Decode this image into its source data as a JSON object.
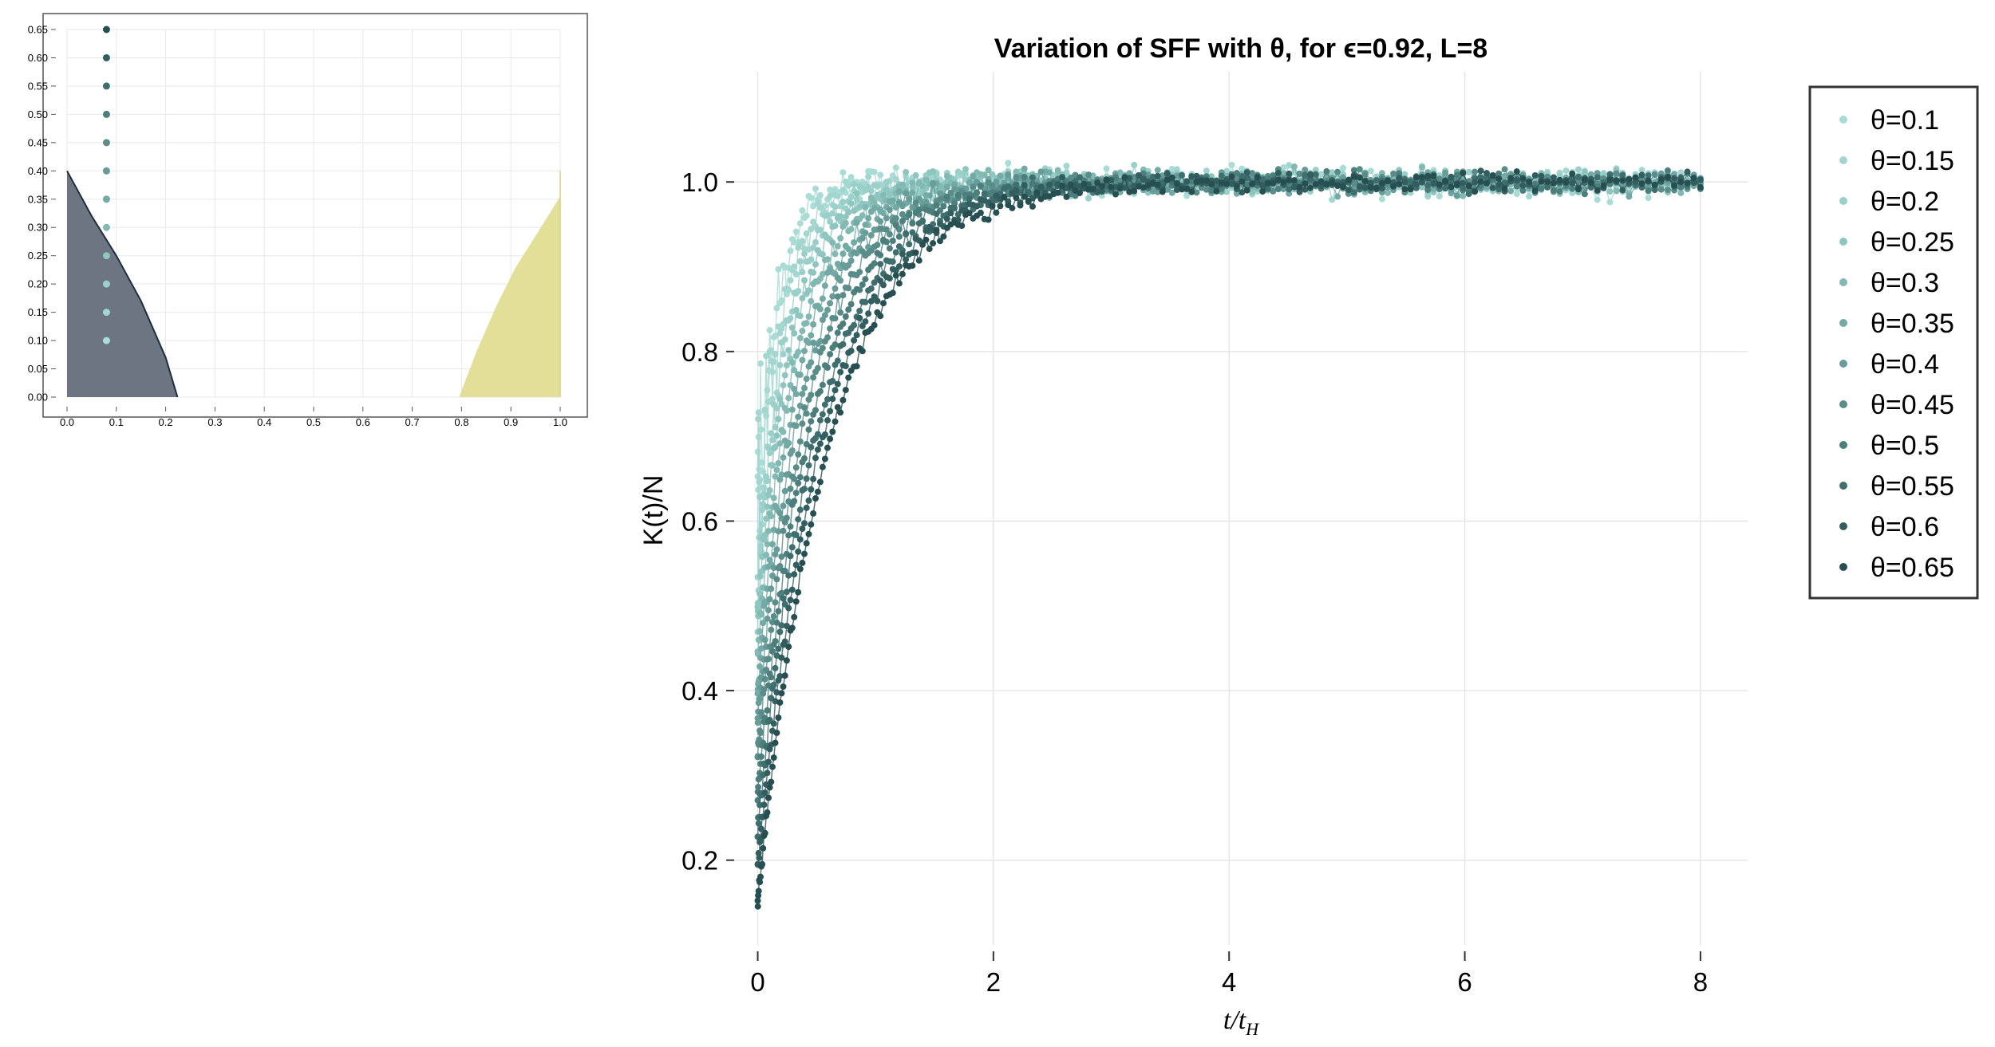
{
  "chart_data": [
    {
      "id": "inset",
      "type": "scatter",
      "title": "",
      "xlabel": "",
      "ylabel": "",
      "xlim": [
        0.0,
        1.0
      ],
      "ylim": [
        0.0,
        0.65
      ],
      "grid": true,
      "x_ticks": [
        "0.0",
        "0.1",
        "0.2",
        "0.3",
        "0.4",
        "0.5",
        "0.6",
        "0.7",
        "0.8",
        "0.9",
        "1.0"
      ],
      "y_ticks": [
        "0.00",
        "0.05",
        "0.10",
        "0.15",
        "0.20",
        "0.25",
        "0.30",
        "0.35",
        "0.40",
        "0.45",
        "0.50",
        "0.55",
        "0.60",
        "0.65"
      ],
      "points": [
        {
          "x": 0.08,
          "y": 0.1
        },
        {
          "x": 0.08,
          "y": 0.15
        },
        {
          "x": 0.08,
          "y": 0.2
        },
        {
          "x": 0.08,
          "y": 0.25
        },
        {
          "x": 0.08,
          "y": 0.3
        },
        {
          "x": 0.08,
          "y": 0.35
        },
        {
          "x": 0.08,
          "y": 0.4
        },
        {
          "x": 0.08,
          "y": 0.45
        },
        {
          "x": 0.08,
          "y": 0.5
        },
        {
          "x": 0.08,
          "y": 0.55
        },
        {
          "x": 0.08,
          "y": 0.6
        },
        {
          "x": 0.08,
          "y": 0.65
        }
      ],
      "regions": [
        {
          "color": "#6c7581",
          "edge_color": "#1e2e38",
          "boundary": [
            [
              0.0,
              0.4
            ],
            [
              0.05,
              0.32
            ],
            [
              0.1,
              0.25
            ],
            [
              0.15,
              0.17
            ],
            [
              0.2,
              0.07
            ],
            [
              0.224,
              0.0
            ]
          ]
        },
        {
          "color": "#e2e098",
          "edge_color": "#d4d27a",
          "boundary": [
            [
              0.795,
              0.0
            ],
            [
              0.83,
              0.08
            ],
            [
              0.87,
              0.16
            ],
            [
              0.91,
              0.23
            ],
            [
              0.95,
              0.285
            ],
            [
              1.0,
              0.355
            ]
          ]
        }
      ]
    },
    {
      "id": "main",
      "type": "scatter",
      "title": "Variation of SFF with θ, for ϵ=0.92, L=8",
      "xlabel": "t/t",
      "xlabel_subscript": "H",
      "ylabel": "K(t)/N",
      "xlim": [
        -0.2,
        8.4
      ],
      "ylim": [
        0.1,
        1.13
      ],
      "grid": true,
      "x_ticks": [
        0,
        2,
        4,
        6,
        8
      ],
      "x_tick_labels": [
        "0",
        "2",
        "4",
        "6",
        "8"
      ],
      "y_ticks": [
        0.2,
        0.4,
        0.6,
        0.8,
        1.0
      ],
      "y_tick_labels": [
        "0.2",
        "0.4",
        "0.6",
        "0.8",
        "1.0"
      ],
      "legend": "top-right outside",
      "series": [
        {
          "name": "θ=0.1",
          "theta": 0.1,
          "color": "#a9dcd5"
        },
        {
          "name": "θ=0.15",
          "theta": 0.15,
          "color": "#a2d6cf"
        },
        {
          "name": "θ=0.2",
          "theta": 0.2,
          "color": "#9ad0c9"
        },
        {
          "name": "θ=0.25",
          "theta": 0.25,
          "color": "#8ec5be"
        },
        {
          "name": "θ=0.3",
          "theta": 0.3,
          "color": "#82b9b3"
        },
        {
          "name": "θ=0.35",
          "theta": 0.35,
          "color": "#74aaa5"
        },
        {
          "name": "θ=0.4",
          "theta": 0.4,
          "color": "#679c98"
        },
        {
          "name": "θ=0.45",
          "theta": 0.45,
          "color": "#5a8d8a"
        },
        {
          "name": "θ=0.5",
          "theta": 0.5,
          "color": "#4c7e7c"
        },
        {
          "name": "θ=0.55",
          "theta": 0.55,
          "color": "#3f6e6e"
        },
        {
          "name": "θ=0.6",
          "theta": 0.6,
          "color": "#335e60"
        },
        {
          "name": "θ=0.65",
          "theta": 0.65,
          "color": "#274f52"
        }
      ]
    }
  ]
}
